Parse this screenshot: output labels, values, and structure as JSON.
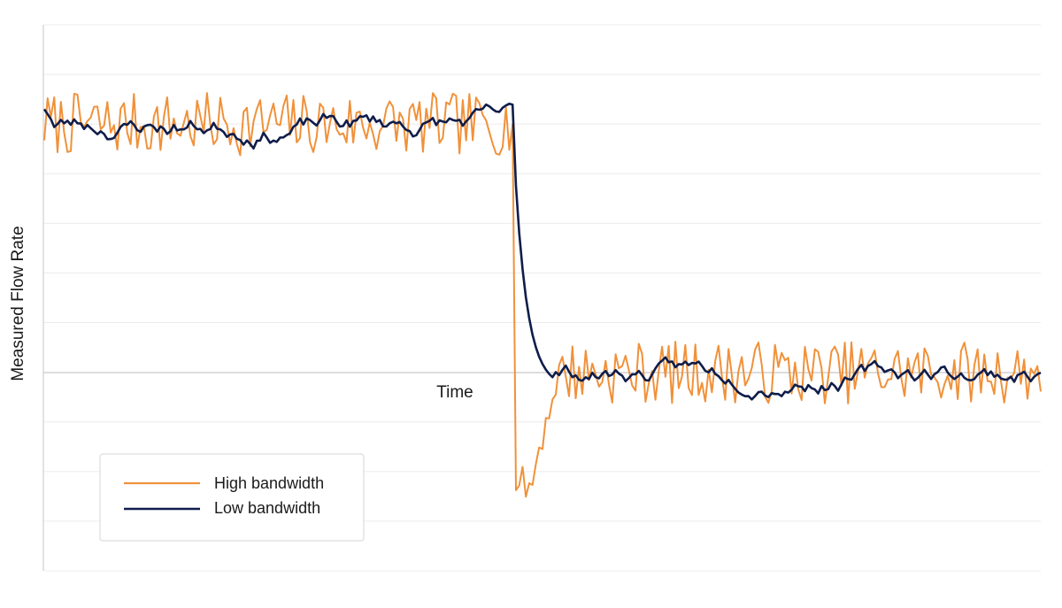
{
  "chart_data": {
    "type": "line",
    "title": "",
    "xlabel": "Time",
    "ylabel": "Measured Flow Rate",
    "x_tick_labels": false,
    "y_tick_labels": false,
    "xlim": [
      0,
      300
    ],
    "ylim": [
      -8,
      14
    ],
    "grid": true,
    "legend_position": "bottom-left",
    "series": [
      {
        "name": "High bandwidth",
        "color": "#f0913a",
        "model": {
          "step_index": 141,
          "pre_level": 10.0,
          "post_level": 0.0,
          "noise_amplitude": 0.9,
          "undershoot_minimum": -5.3,
          "recovery_end_index": 155
        }
      },
      {
        "name": "Low bandwidth",
        "color": "#0f1d4a",
        "model": {
          "step_index": 141,
          "pre_level": 10.0,
          "post_level": 0.0,
          "noise_amplitude": 0.3,
          "settle_end_index": 153
        }
      }
    ]
  }
}
